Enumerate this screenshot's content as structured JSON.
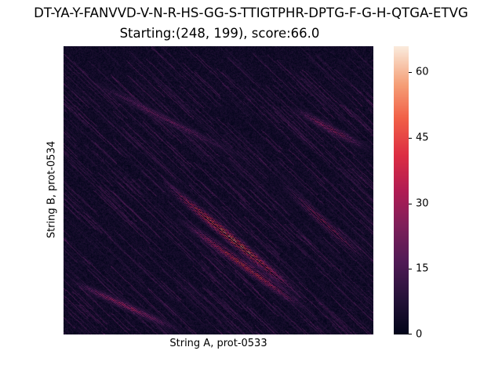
{
  "chart_data": {
    "type": "heatmap",
    "title": "DT-YA-Y-FANVVD-V-N-R-HS-GG-S-TTIGTPHR-DPTG-F-G-H-QTGA-ETVG",
    "subtitle": "Starting:(248, 199), score:66.0",
    "xlabel": "String A, prot-0533",
    "ylabel": "String B, prot-0534",
    "colorbar": {
      "range": [
        0,
        66
      ],
      "ticks": [
        0,
        15,
        30,
        45,
        60
      ],
      "tick_labels": [
        "0",
        "15",
        "30",
        "45",
        "60"
      ],
      "colormap": "rocket"
    },
    "x_tick_labels": [],
    "y_tick_labels": [],
    "grid": false,
    "features": [
      {
        "from": [
          0.72,
          0.2
        ],
        "to": [
          1.0,
          0.37
        ],
        "peak": 0.52,
        "note": "upper-right ridges"
      },
      {
        "from": [
          0.05,
          0.1
        ],
        "to": [
          0.6,
          0.4
        ],
        "peak": 0.4,
        "note": "upper-left diagonal streaks"
      },
      {
        "from": [
          0.3,
          0.45
        ],
        "to": [
          0.78,
          0.88
        ],
        "peak": 1.0,
        "note": "main high-score ridge"
      },
      {
        "from": [
          0.35,
          0.58
        ],
        "to": [
          0.8,
          0.93
        ],
        "peak": 0.78,
        "note": "parallel ridge"
      },
      {
        "from": [
          0.68,
          0.45
        ],
        "to": [
          1.0,
          0.77
        ],
        "peak": 0.55,
        "note": "right-middle ridge"
      },
      {
        "from": [
          0.0,
          0.8
        ],
        "to": [
          0.4,
          1.0
        ],
        "peak": 0.55,
        "note": "lower-left ridge"
      }
    ]
  }
}
